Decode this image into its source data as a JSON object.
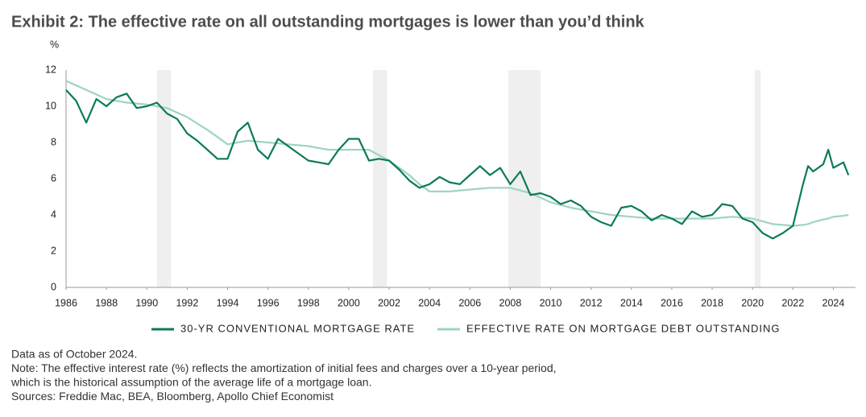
{
  "chart_data": {
    "type": "line",
    "title": "Exhibit 2: The effective rate on all outstanding mortgages is lower than you’d think",
    "y_label": "%",
    "x": [
      1986,
      1986.5,
      1987,
      1987.5,
      1988,
      1988.5,
      1989,
      1989.5,
      1990,
      1990.5,
      1991,
      1991.5,
      1992,
      1992.5,
      1993,
      1993.5,
      1994,
      1994.5,
      1995,
      1995.5,
      1996,
      1996.5,
      1997,
      1997.5,
      1998,
      1998.5,
      1999,
      1999.5,
      2000,
      2000.5,
      2001,
      2001.5,
      2002,
      2002.5,
      2003,
      2003.5,
      2004,
      2004.5,
      2005,
      2005.5,
      2006,
      2006.5,
      2007,
      2007.5,
      2008,
      2008.5,
      2009,
      2009.5,
      2010,
      2010.5,
      2011,
      2011.5,
      2012,
      2012.5,
      2013,
      2013.5,
      2014,
      2014.5,
      2015,
      2015.5,
      2016,
      2016.5,
      2017,
      2017.5,
      2018,
      2018.5,
      2019,
      2019.5,
      2020,
      2020.5,
      2021,
      2021.5,
      2022,
      2022.5,
      2022.75,
      2023,
      2023.5,
      2023.75,
      2024,
      2024.5,
      2024.75
    ],
    "series": [
      {
        "name": "30-YR CONVENTIONAL MORTGAGE RATE",
        "color": "#0b7a5c",
        "width": 2.2,
        "values": [
          10.9,
          10.3,
          9.1,
          10.4,
          10.0,
          10.5,
          10.7,
          9.9,
          10.0,
          10.2,
          9.6,
          9.3,
          8.5,
          8.1,
          7.6,
          7.1,
          7.1,
          8.6,
          9.1,
          7.6,
          7.1,
          8.2,
          7.8,
          7.4,
          7.0,
          6.9,
          6.8,
          7.6,
          8.2,
          8.2,
          7.0,
          7.1,
          7.0,
          6.5,
          5.9,
          5.5,
          5.7,
          6.1,
          5.8,
          5.7,
          6.2,
          6.7,
          6.2,
          6.6,
          5.7,
          6.4,
          5.1,
          5.2,
          5.0,
          4.6,
          4.8,
          4.5,
          3.9,
          3.6,
          3.4,
          4.4,
          4.5,
          4.2,
          3.7,
          4.0,
          3.8,
          3.5,
          4.2,
          3.9,
          4.0,
          4.6,
          4.5,
          3.8,
          3.6,
          3.0,
          2.7,
          3.0,
          3.4,
          5.7,
          6.7,
          6.4,
          6.8,
          7.6,
          6.6,
          6.9,
          6.2
        ]
      },
      {
        "name": "EFFECTIVE RATE ON MORTGAGE DEBT OUTSTANDING",
        "color": "#9fd3c2",
        "width": 2.2,
        "values": [
          11.4,
          11.15,
          10.9,
          10.65,
          10.4,
          10.3,
          10.2,
          10.15,
          10.1,
          10.0,
          9.9,
          9.65,
          9.4,
          9.05,
          8.7,
          8.3,
          7.9,
          8.0,
          8.1,
          8.05,
          8.0,
          7.95,
          7.9,
          7.85,
          7.8,
          7.7,
          7.6,
          7.6,
          7.6,
          7.6,
          7.6,
          7.3,
          7.0,
          6.6,
          6.2,
          5.7,
          5.3,
          5.3,
          5.3,
          5.35,
          5.4,
          5.45,
          5.5,
          5.5,
          5.5,
          5.35,
          5.2,
          4.95,
          4.7,
          4.55,
          4.4,
          4.3,
          4.2,
          4.1,
          4.0,
          3.95,
          3.9,
          3.85,
          3.8,
          3.8,
          3.8,
          3.8,
          3.8,
          3.8,
          3.8,
          3.85,
          3.9,
          3.85,
          3.8,
          3.65,
          3.5,
          3.45,
          3.4,
          3.45,
          3.5,
          3.6,
          3.75,
          3.8,
          3.9,
          3.95,
          4.0
        ]
      }
    ],
    "shaded_regions": [
      {
        "start": 1990.5,
        "end": 1991.2
      },
      {
        "start": 2001.2,
        "end": 2001.9
      },
      {
        "start": 2007.9,
        "end": 2009.5
      },
      {
        "start": 2020.1,
        "end": 2020.4
      }
    ],
    "shade_color": "#efefef",
    "xlim": [
      1986,
      2025.1
    ],
    "xticks": [
      1986,
      1988,
      1990,
      1992,
      1994,
      1996,
      1998,
      2000,
      2002,
      2004,
      2006,
      2008,
      2010,
      2012,
      2014,
      2016,
      2018,
      2020,
      2022,
      2024
    ],
    "ylim": [
      0,
      12
    ],
    "yticks": [
      0,
      2,
      4,
      6,
      8,
      10,
      12
    ],
    "grid": false,
    "notes": [
      "Data as of October 2024.",
      "Note: The effective interest rate (%) reflects the amortization of initial fees and charges over a 10-year period,",
      "which is the historical assumption of the average life of a mortgage loan.",
      "Sources: Freddie Mac, BEA, Bloomberg, Apollo Chief Economist"
    ]
  }
}
